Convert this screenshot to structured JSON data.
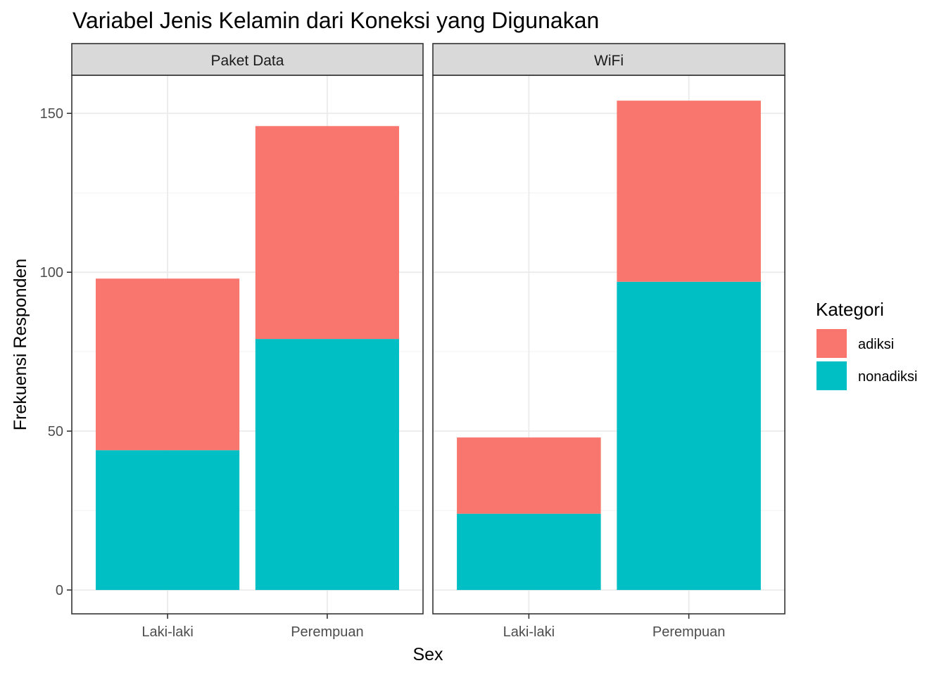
{
  "chart_data": {
    "type": "bar",
    "stacked": true,
    "title": "Variabel Jenis Kelamin dari Koneksi yang Digunakan",
    "xlabel": "Sex",
    "ylabel": "Frekuensi Responden",
    "ylim": [
      -7.5,
      162
    ],
    "yticks": [
      "0",
      "50",
      "100",
      "150"
    ],
    "grid": true,
    "legend": {
      "title": "Kategori",
      "placement": "right"
    },
    "categories": [
      "Laki-laki",
      "Perempuan"
    ],
    "facets": [
      {
        "name": "Paket Data",
        "series": [
          {
            "name": "nonadiksi",
            "values": [
              44,
              79
            ]
          },
          {
            "name": "adiksi",
            "values": [
              54,
              67
            ]
          }
        ]
      },
      {
        "name": "WiFi",
        "series": [
          {
            "name": "nonadiksi",
            "values": [
              24,
              97
            ]
          },
          {
            "name": "adiksi",
            "values": [
              24,
              57
            ]
          }
        ]
      }
    ],
    "legend_entries": [
      {
        "name": "adiksi",
        "color": "#F8766D"
      },
      {
        "name": "nonadiksi",
        "color": "#00BFC4"
      }
    ],
    "colors": {
      "adiksi": "#F8766D",
      "nonadiksi": "#00BFC4"
    }
  }
}
